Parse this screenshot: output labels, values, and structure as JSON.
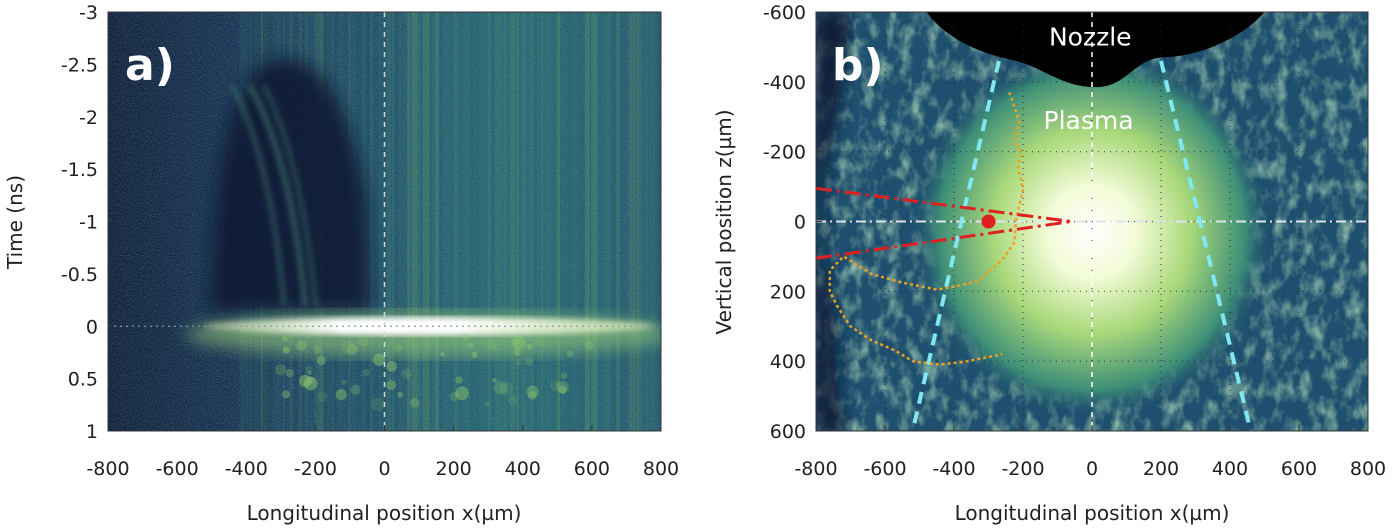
{
  "chart_data": [
    {
      "type": "heatmap",
      "panel_label": "a)",
      "xlabel": "Longitudinal position x(µm)",
      "ylabel": "Time (ns)",
      "xlim": [
        -800,
        800
      ],
      "ylim": [
        -3,
        1
      ],
      "y_inverted": true,
      "xticks": [
        -800,
        -600,
        -400,
        -200,
        0,
        200,
        400,
        600,
        800
      ],
      "xtick_labels": [
        "-800",
        "-600",
        "-400",
        "-200",
        "0",
        "200",
        "400",
        "600",
        "800"
      ],
      "yticks": [
        -3,
        -2.5,
        -2,
        -1.5,
        -1,
        -0.5,
        0,
        0.5,
        1
      ],
      "ytick_labels": [
        "-3",
        "-2.5",
        "-2",
        "-1.5",
        "-1",
        "-0.5",
        "0",
        "0.5",
        "1"
      ],
      "colormap": [
        "#0d1b3a",
        "#1f4f6e",
        "#3a8a7e",
        "#8fc86e",
        "#e8f5b8",
        "#ffffff"
      ],
      "reference_lines": [
        {
          "axis": "x",
          "value": 0,
          "style": "dashed"
        },
        {
          "axis": "y",
          "value": 0,
          "style": "dotted"
        }
      ],
      "features": {
        "dark_region": {
          "x_range": [
            -500,
            -50
          ],
          "t_range": [
            -2.55,
            -0.15
          ]
        },
        "bright_flash": {
          "x_range": [
            -520,
            780
          ],
          "t": 0,
          "peak_x": -50
        }
      }
    },
    {
      "type": "heatmap",
      "panel_label": "b)",
      "xlabel": "Longitudinal position x(µm)",
      "ylabel": "Vertical position z(µm)",
      "xlim": [
        -800,
        800
      ],
      "ylim": [
        -600,
        600
      ],
      "y_inverted": true,
      "xticks": [
        -800,
        -600,
        -400,
        -200,
        0,
        200,
        400,
        600,
        800
      ],
      "xtick_labels": [
        "-800",
        "-600",
        "-400",
        "-200",
        "0",
        "200",
        "400",
        "600",
        "800"
      ],
      "yticks": [
        -600,
        -400,
        -200,
        0,
        200,
        400,
        600
      ],
      "ytick_labels": [
        "-600",
        "-400",
        "-200",
        "0",
        "200",
        "400",
        "600"
      ],
      "grid": true,
      "colormap": [
        "#0d1b3a",
        "#1f4f6e",
        "#3a8a7e",
        "#8fc86e",
        "#e8f5b8",
        "#ffffff"
      ],
      "annotations": [
        {
          "text": "Nozzle",
          "x": -5,
          "z": -530
        },
        {
          "text": "Plasma",
          "x": -10,
          "z": -290
        }
      ],
      "overlay_lines": {
        "cone_left": {
          "color": "#7fe8f0",
          "style": "dashed",
          "points": [
            [
              -270,
              -460
            ],
            [
              -520,
              600
            ]
          ]
        },
        "cone_right": {
          "color": "#7fe8f0",
          "style": "dashed",
          "points": [
            [
              200,
              -460
            ],
            [
              460,
              600
            ]
          ]
        },
        "red_upper": {
          "color": "#e02020",
          "style": "dash-dot",
          "points": [
            [
              -800,
              -95
            ],
            [
              -60,
              0
            ]
          ]
        },
        "red_lower": {
          "color": "#e02020",
          "style": "dash-dot",
          "points": [
            [
              -800,
              105
            ],
            [
              -60,
              0
            ]
          ]
        },
        "red_point": {
          "color": "#e02020",
          "x": -300,
          "z": 0
        },
        "orange_contour": {
          "color": "#f0a020",
          "style": "dotted",
          "points": [
            [
              -240,
              -370
            ],
            [
              -225,
              -330
            ],
            [
              -210,
              -280
            ],
            [
              -225,
              -240
            ],
            [
              -205,
              -200
            ],
            [
              -215,
              -160
            ],
            [
              -200,
              -90
            ],
            [
              -220,
              -10
            ],
            [
              -225,
              60
            ],
            [
              -260,
              110
            ],
            [
              -330,
              170
            ],
            [
              -390,
              185
            ],
            [
              -450,
              195
            ],
            [
              -550,
              175
            ],
            [
              -640,
              150
            ],
            [
              -720,
              100
            ],
            [
              -760,
              140
            ],
            [
              -760,
              200
            ],
            [
              -740,
              240
            ],
            [
              -700,
              300
            ],
            [
              -640,
              340
            ],
            [
              -570,
              370
            ],
            [
              -520,
              400
            ],
            [
              -440,
              410
            ],
            [
              -360,
              400
            ],
            [
              -260,
              380
            ]
          ]
        }
      }
    }
  ]
}
